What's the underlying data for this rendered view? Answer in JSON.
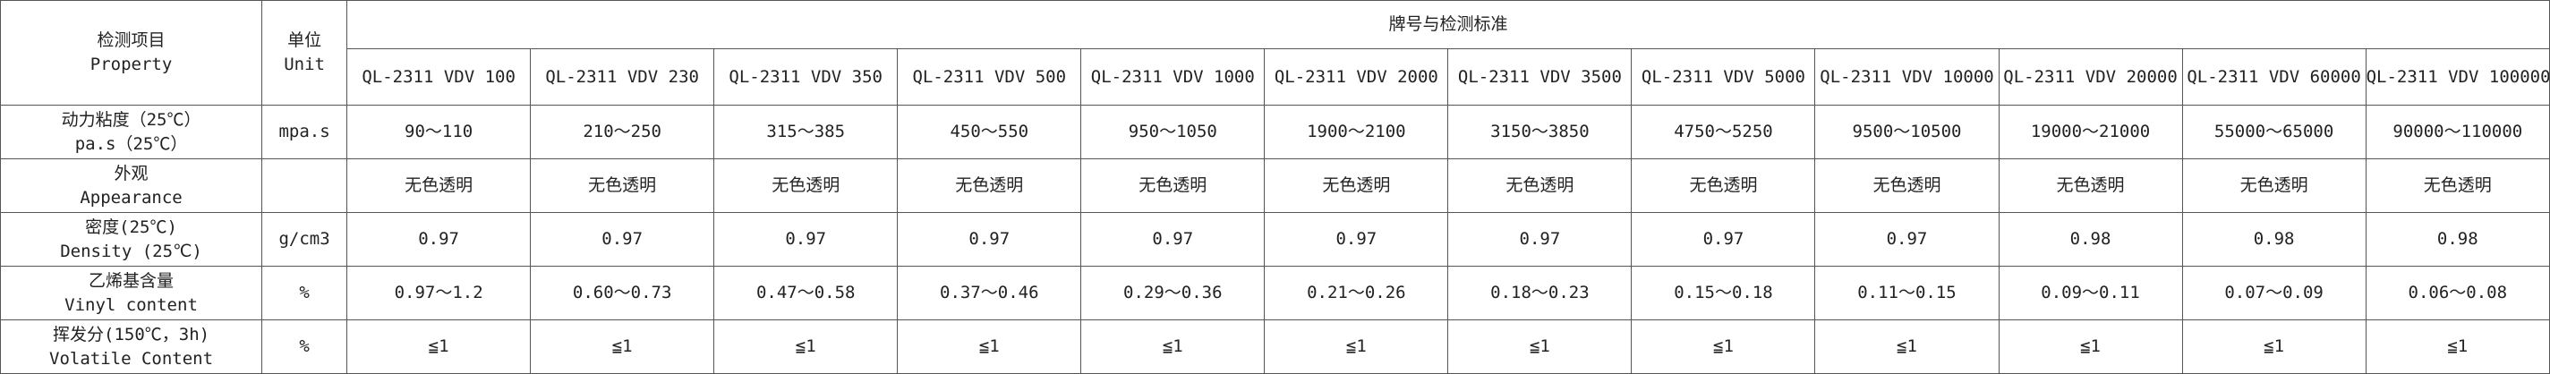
{
  "header": {
    "property": [
      "检测项目",
      "Property"
    ],
    "unit": [
      "单位",
      "Unit"
    ],
    "group": "牌号与检测标准",
    "grades": [
      "QL-2311 VDV 100",
      "QL-2311 VDV 230",
      "QL-2311 VDV 350",
      "QL-2311 VDV 500",
      "QL-2311 VDV 1000",
      "QL-2311 VDV 2000",
      "QL-2311 VDV 3500",
      "QL-2311 VDV 5000",
      "QL-2311 VDV 10000",
      "QL-2311 VDV 20000",
      "QL-2311 VDV 60000",
      "QL-2311 VDV 100000"
    ]
  },
  "rows": [
    {
      "name": [
        "动力粘度（25℃）",
        "pa.s（25℃）"
      ],
      "unit": "mpa.s",
      "values": [
        "90～110",
        "210～250",
        "315～385",
        "450～550",
        "950～1050",
        "1900～2100",
        "3150～3850",
        "4750～5250",
        "9500～10500",
        "19000～21000",
        "55000～65000",
        "90000～110000"
      ]
    },
    {
      "name": [
        "外观",
        "Appearance"
      ],
      "values": [
        "无色透明",
        "无色透明",
        "无色透明",
        "无色透明",
        "无色透明",
        "无色透明",
        "无色透明",
        "无色透明",
        "无色透明",
        "无色透明",
        "无色透明",
        "无色透明"
      ]
    },
    {
      "name": [
        "密度(25℃)",
        "Density (25℃)"
      ],
      "unit": "g/cm3",
      "values": [
        "0.97",
        "0.97",
        "0.97",
        "0.97",
        "0.97",
        "0.97",
        "0.97",
        "0.97",
        "0.97",
        "0.98",
        "0.98",
        "0.98"
      ]
    },
    {
      "name": [
        "乙烯基含量",
        "Vinyl content"
      ],
      "unit": "%",
      "values": [
        "0.97～1.2",
        "0.60～0.73",
        "0.47～0.58",
        "0.37～0.46",
        "0.29～0.36",
        "0.21～0.26",
        "0.18～0.23",
        "0.15～0.18",
        "0.11～0.15",
        "0.09～0.11",
        "0.07～0.09",
        "0.06～0.08"
      ]
    },
    {
      "name": [
        "挥发分(150℃，3h)",
        "Volatile Content"
      ],
      "unit": "%",
      "values": [
        "≦1",
        "≦1",
        "≦1",
        "≦1",
        "≦1",
        "≦1",
        "≦1",
        "≦1",
        "≦1",
        "≦1",
        "≦1",
        "≦1"
      ]
    }
  ]
}
